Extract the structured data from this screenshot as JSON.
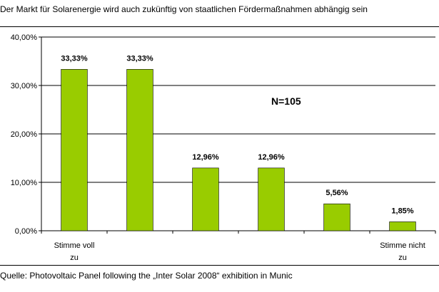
{
  "title": "Der Markt für Solarenergie wird auch zukünftig von staatlichen Fördermaßnahmen abhängig sein",
  "source": "Quelle: Photovoltaic Panel following the „Inter Solar 2008“ exhibition in Munic",
  "chart_data": {
    "type": "bar",
    "title": "",
    "xlabel": "",
    "ylabel": "",
    "ylim": [
      0,
      40
    ],
    "y_ticks": [
      "0,00%",
      "10,00%",
      "20,00%",
      "30,00%",
      "40,00%"
    ],
    "categories": [
      [
        "Stimme voll",
        "zu"
      ],
      [
        "",
        ""
      ],
      [
        "",
        ""
      ],
      [
        "",
        ""
      ],
      [
        "",
        ""
      ],
      [
        "Stimme nicht",
        "zu"
      ]
    ],
    "values": [
      33.33,
      33.33,
      12.96,
      12.96,
      5.56,
      1.85
    ],
    "data_labels": [
      "33,33%",
      "33,33%",
      "12,96%",
      "12,96%",
      "5,56%",
      "1,85%"
    ],
    "annotation": "N=105",
    "bar_color": "#99cc00",
    "grid": "horizontal",
    "legend": "none"
  }
}
